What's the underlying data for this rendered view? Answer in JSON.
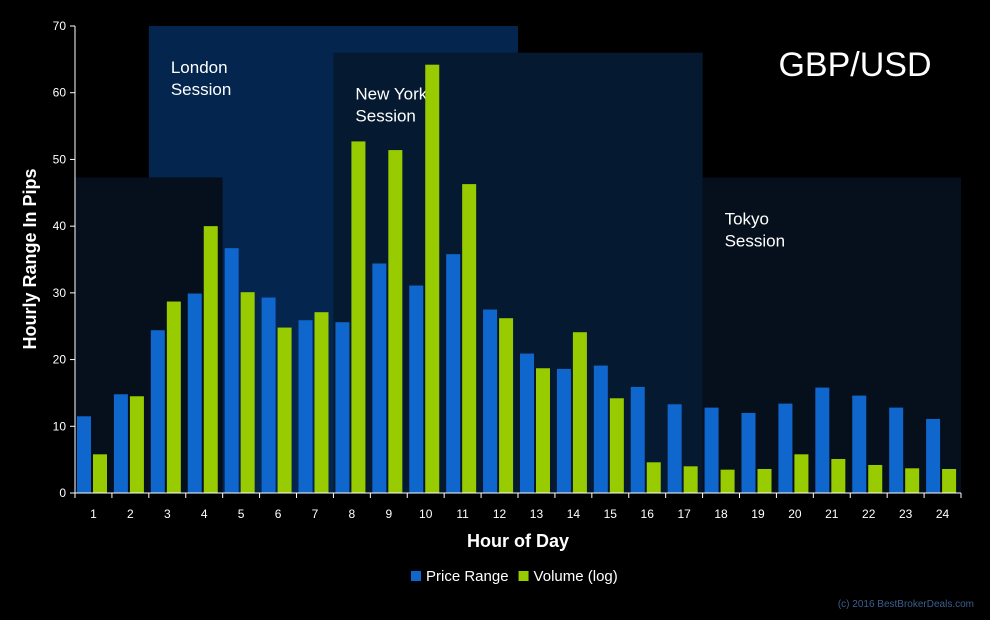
{
  "chart_data": {
    "type": "bar",
    "title": "GBP/USD",
    "xlabel": "Hour of Day",
    "ylabel": "Hourly Range In Pips",
    "ylim": [
      0,
      70
    ],
    "yticks": [
      0,
      10,
      20,
      30,
      40,
      50,
      60,
      70
    ],
    "categories": [
      "1",
      "2",
      "3",
      "4",
      "5",
      "6",
      "7",
      "8",
      "9",
      "10",
      "11",
      "12",
      "13",
      "14",
      "15",
      "16",
      "17",
      "18",
      "19",
      "20",
      "21",
      "22",
      "23",
      "24"
    ],
    "series": [
      {
        "name": "Price Range",
        "color": "#0f66cc",
        "values": [
          11.5,
          14.8,
          24.4,
          29.9,
          36.7,
          29.3,
          25.9,
          25.6,
          34.4,
          31.1,
          35.8,
          27.5,
          20.9,
          18.6,
          19.1,
          15.9,
          13.3,
          12.8,
          12.0,
          13.4,
          15.8,
          14.6,
          12.8,
          11.1
        ]
      },
      {
        "name": "Volume (log)",
        "color": "#99cc00",
        "values": [
          5.8,
          14.5,
          28.7,
          40.0,
          30.1,
          24.8,
          27.1,
          52.7,
          51.4,
          64.2,
          46.3,
          26.2,
          18.7,
          24.1,
          14.2,
          4.6,
          4.0,
          3.5,
          3.6,
          5.8,
          5.1,
          4.2,
          3.7,
          3.6
        ]
      }
    ],
    "sessions": [
      {
        "label_line1": "London",
        "label_line2": "Session",
        "start_hour": 3,
        "end_hour": 12,
        "top": 70,
        "color": "#03254e"
      },
      {
        "label_line1": "New York",
        "label_line2": "Session",
        "start_hour": 8,
        "end_hour": 17,
        "top": 66,
        "color": "#051a30"
      },
      {
        "label_line1": "",
        "label_line2": "",
        "start_hour": 1,
        "end_hour": 4,
        "top": 47.3,
        "color": "#06101d"
      },
      {
        "label_line1": "Tokyo",
        "label_line2": "Session",
        "start_hour": 18,
        "end_hour": 24,
        "top": 47.3,
        "color": "#06101d"
      }
    ],
    "legend_position": "bottom",
    "grid": false
  },
  "credit": "(c) 2016 BestBrokerDeals.com"
}
